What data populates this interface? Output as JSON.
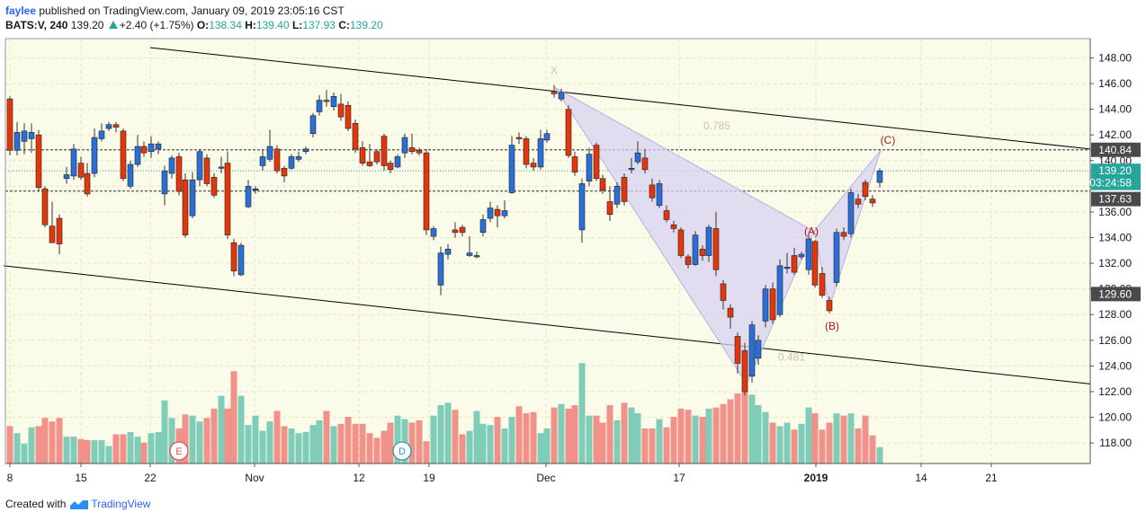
{
  "header": {
    "author": "faylee",
    "published_text": "published on TradingView.com, January 09, 2019 23:05:16 CST",
    "symbol": "BATS:V, 240",
    "last": "139.20",
    "change": "+2.40 (+1.75%)",
    "o_label": "O:",
    "o_val": "138.34",
    "h_label": "H:",
    "h_val": "139.40",
    "l_label": "L:",
    "l_val": "137.93",
    "c_label": "C:",
    "c_val": "139.20"
  },
  "footer": {
    "created_with": "Created with",
    "brand": "TradingView"
  },
  "colors": {
    "bg": "#fbfbe9",
    "up": "#2a6fd8",
    "down": "#e3360c",
    "vol_up": "#7fcdb9",
    "vol_down": "#f0928a",
    "pattern": "#d8d2f0",
    "grid": "#e9e6c0"
  },
  "chart_data": {
    "type": "candlestick",
    "x_tick_labels": [
      "8",
      "15",
      "22",
      "Nov",
      "12",
      "19",
      "Dec",
      "17",
      "2019",
      "14",
      "21"
    ],
    "y_ticks": [
      118,
      120,
      122,
      124,
      126,
      128,
      130,
      132,
      134,
      136,
      138,
      140,
      142,
      144,
      146,
      148
    ],
    "ylim": [
      116.4,
      149.5
    ],
    "price_labels": [
      {
        "value": 140.84,
        "text": "140.84",
        "style": "dark"
      },
      {
        "value": 139.2,
        "text": "139.20",
        "style": "teal"
      },
      {
        "value": 137.63,
        "text": "03:24:58",
        "style": "teal"
      },
      {
        "value": 137.63,
        "text": "137.63",
        "style": "dark"
      },
      {
        "value": 129.6,
        "text": "129.60",
        "style": "dark"
      }
    ],
    "hlines": [
      140.84,
      137.63
    ],
    "channel": [
      [
        [
          4,
          131.8
        ],
        [
          1212,
          122.6
        ]
      ],
      [
        [
          167,
          148.8
        ],
        [
          1212,
          140.9
        ]
      ]
    ],
    "pattern_points": [
      [
        617,
        145.7
      ],
      [
        830,
        122.6
      ],
      [
        905,
        134.5
      ],
      [
        922,
        128.6
      ],
      [
        979,
        140.8
      ]
    ],
    "annotations": [
      {
        "text": "X",
        "price": 147.0,
        "x": 616,
        "color": "#c7c3b8"
      },
      {
        "text": "0.785",
        "price": 142.7,
        "x": 797,
        "color": "#c7c3b8"
      },
      {
        "text": "0.481",
        "price": 124.7,
        "x": 880,
        "color": "#c7c3b8"
      },
      {
        "text": "(A)",
        "price": 134.5,
        "x": 902,
        "color": "#b01818"
      },
      {
        "text": "(B)",
        "price": 127.1,
        "x": 925,
        "color": "#b01818"
      },
      {
        "text": "(C)",
        "price": 141.6,
        "x": 987,
        "color": "#b01818"
      }
    ],
    "events": [
      {
        "label": "E",
        "color": "#e05050"
      },
      {
        "label": "D",
        "color": "#2a9ab0"
      }
    ],
    "candles": [
      [
        11,
        144.8,
        140.8,
        145.0,
        140.4
      ],
      [
        19,
        140.8,
        142.2,
        143.0,
        140.4
      ],
      [
        27,
        141.5,
        142.3,
        142.9,
        140.5
      ],
      [
        35,
        141.7,
        142.2,
        142.9,
        140.6
      ],
      [
        43,
        142.0,
        137.9,
        142.4,
        137.6
      ],
      [
        50,
        137.8,
        135.0,
        138.0,
        134.8
      ],
      [
        58,
        134.9,
        133.6,
        136.8,
        133.6
      ],
      [
        66,
        135.5,
        133.5,
        135.8,
        132.7
      ],
      [
        74,
        138.6,
        138.9,
        139.5,
        138.2
      ],
      [
        82,
        138.8,
        140.9,
        141.3,
        138.5
      ],
      [
        90,
        139.8,
        138.7,
        140.3,
        138.5
      ],
      [
        97,
        139.0,
        137.4,
        139.8,
        137.2
      ],
      [
        105,
        139.0,
        141.8,
        142.5,
        138.7
      ],
      [
        113,
        141.7,
        142.3,
        142.9,
        141.5
      ],
      [
        121,
        142.5,
        142.8,
        143.0,
        142.3
      ],
      [
        129,
        142.8,
        142.6,
        143.0,
        142.2
      ],
      [
        137,
        142.3,
        138.6,
        142.5,
        138.4
      ],
      [
        145,
        138.0,
        139.7,
        140.0,
        137.8
      ],
      [
        153,
        139.7,
        141.1,
        142.0,
        139.5
      ],
      [
        160,
        141.1,
        140.6,
        141.5,
        140.3
      ],
      [
        168,
        140.7,
        141.3,
        141.9,
        140.2
      ],
      [
        176,
        140.9,
        141.3,
        141.5,
        140.5
      ],
      [
        183,
        137.4,
        139.2,
        139.6,
        136.5
      ],
      [
        191,
        139.0,
        140.2,
        140.4,
        138.6
      ],
      [
        199,
        140.3,
        137.6,
        140.6,
        137.3
      ],
      [
        206,
        138.5,
        134.2,
        139.0,
        134.0
      ],
      [
        214,
        135.7,
        138.5,
        139.1,
        135.5
      ],
      [
        222,
        138.5,
        140.7,
        140.9,
        138.0
      ],
      [
        230,
        140.2,
        138.2,
        140.5,
        138.0
      ],
      [
        238,
        138.7,
        137.3,
        139.0,
        137.1
      ],
      [
        246,
        139.5,
        139.5,
        140.3,
        139.0
      ],
      [
        253,
        139.8,
        134.2,
        140.7,
        133.9
      ],
      [
        260,
        133.6,
        131.4,
        133.9,
        131.0
      ],
      [
        268,
        131.1,
        133.4,
        133.6,
        131.0
      ],
      [
        276,
        136.4,
        138.0,
        138.5,
        136.3
      ],
      [
        284,
        137.7,
        137.8,
        138.0,
        137.4
      ],
      [
        292,
        139.6,
        140.3,
        140.8,
        139.2
      ],
      [
        300,
        140.1,
        141.1,
        142.4,
        139.9
      ],
      [
        308,
        140.9,
        139.2,
        141.2,
        139.0
      ],
      [
        316,
        139.4,
        138.8,
        139.6,
        138.3
      ],
      [
        324,
        139.4,
        140.3,
        140.5,
        139.3
      ],
      [
        332,
        140.1,
        140.3,
        140.7,
        139.9
      ],
      [
        340,
        140.7,
        140.9,
        141.1,
        140.5
      ],
      [
        348,
        142.1,
        143.5,
        143.7,
        141.8
      ],
      [
        355,
        143.8,
        144.7,
        145.1,
        143.5
      ],
      [
        363,
        144.7,
        144.6,
        145.5,
        144.2
      ],
      [
        371,
        144.2,
        145.0,
        145.3,
        143.9
      ],
      [
        379,
        144.4,
        143.4,
        145.2,
        143.1
      ],
      [
        387,
        144.3,
        142.5,
        144.6,
        142.3
      ],
      [
        395,
        142.9,
        140.9,
        143.2,
        140.6
      ],
      [
        403,
        141.0,
        139.8,
        141.5,
        139.6
      ],
      [
        411,
        139.9,
        139.6,
        141.3,
        139.5
      ],
      [
        419,
        140.7,
        139.9,
        140.9,
        139.7
      ],
      [
        427,
        141.9,
        139.6,
        142.1,
        139.2
      ],
      [
        434,
        139.8,
        139.3,
        140.0,
        139.0
      ],
      [
        442,
        139.5,
        140.3,
        140.5,
        139.4
      ],
      [
        450,
        140.6,
        141.8,
        142.1,
        140.2
      ],
      [
        458,
        141.0,
        140.7,
        142.1,
        140.5
      ],
      [
        466,
        140.8,
        140.6,
        141.0,
        140.4
      ],
      [
        474,
        140.6,
        134.6,
        140.9,
        134.2
      ],
      [
        482,
        134.1,
        134.7,
        134.9,
        133.8
      ],
      [
        490,
        130.3,
        132.8,
        133.3,
        129.5
      ],
      [
        498,
        132.7,
        133.1,
        133.5,
        132.3
      ],
      [
        506,
        134.6,
        134.4,
        135.2,
        134.0
      ],
      [
        514,
        134.8,
        134.4,
        135.0,
        134.1
      ],
      [
        522,
        132.6,
        132.8,
        134.1,
        132.5
      ],
      [
        530,
        132.6,
        132.6,
        132.9,
        132.4
      ],
      [
        537,
        134.4,
        135.4,
        135.8,
        134.1
      ],
      [
        545,
        135.5,
        136.3,
        136.8,
        135.2
      ],
      [
        553,
        136.2,
        135.7,
        136.5,
        134.8
      ],
      [
        561,
        135.7,
        136.1,
        136.9,
        135.5
      ],
      [
        569,
        137.5,
        141.2,
        141.9,
        137.4
      ],
      [
        577,
        141.8,
        141.7,
        142.2,
        141.3
      ],
      [
        585,
        141.7,
        139.7,
        141.9,
        139.4
      ],
      [
        593,
        139.8,
        139.5,
        140.2,
        139.2
      ],
      [
        601,
        139.5,
        141.7,
        142.4,
        139.3
      ],
      [
        608,
        141.6,
        142.1,
        142.4,
        141.4
      ],
      [
        616,
        145.4,
        145.2,
        145.9,
        144.9
      ],
      [
        624,
        144.8,
        145.3,
        145.6,
        144.6
      ],
      [
        632,
        144.0,
        140.4,
        144.3,
        140.2
      ],
      [
        639,
        140.3,
        139.1,
        140.7,
        138.8
      ],
      [
        647,
        134.6,
        138.2,
        138.6,
        133.6
      ],
      [
        655,
        138.4,
        140.5,
        141.0,
        138.0
      ],
      [
        663,
        141.2,
        138.6,
        141.4,
        138.4
      ],
      [
        670,
        138.6,
        137.7,
        138.9,
        137.4
      ],
      [
        678,
        136.8,
        135.8,
        138.0,
        135.3
      ],
      [
        686,
        136.6,
        138.0,
        138.3,
        136.3
      ],
      [
        694,
        138.7,
        136.8,
        139.0,
        136.5
      ],
      [
        702,
        139.3,
        139.4,
        140.2,
        139.0
      ],
      [
        709,
        139.9,
        140.6,
        141.5,
        139.7
      ],
      [
        717,
        140.2,
        139.3,
        140.9,
        139.0
      ],
      [
        725,
        138.1,
        137.1,
        138.6,
        136.8
      ],
      [
        733,
        136.5,
        138.2,
        138.5,
        136.3
      ],
      [
        741,
        136.1,
        135.4,
        136.5,
        135.2
      ],
      [
        749,
        135.0,
        134.7,
        135.3,
        134.4
      ],
      [
        757,
        134.6,
        132.6,
        134.8,
        132.4
      ],
      [
        765,
        132.5,
        131.9,
        132.7,
        131.6
      ],
      [
        773,
        131.9,
        134.2,
        134.5,
        131.8
      ],
      [
        781,
        133.1,
        132.6,
        133.4,
        132.2
      ],
      [
        788,
        132.6,
        134.8,
        135.0,
        132.1
      ],
      [
        796,
        134.7,
        131.5,
        136.0,
        131.0
      ],
      [
        804,
        130.4,
        129.1,
        130.7,
        128.4
      ],
      [
        812,
        128.5,
        127.8,
        128.8,
        126.9
      ],
      [
        820,
        126.3,
        124.2,
        126.6,
        123.4
      ],
      [
        828,
        125.2,
        122.0,
        125.8,
        121.7
      ],
      [
        836,
        123.2,
        127.2,
        127.5,
        122.7
      ],
      [
        843,
        124.6,
        126.0,
        126.4,
        124.1
      ],
      [
        851,
        127.5,
        130.0,
        130.3,
        127.0
      ],
      [
        859,
        130.0,
        127.6,
        130.5,
        127.3
      ],
      [
        867,
        128.0,
        131.8,
        132.3,
        127.8
      ],
      [
        875,
        131.6,
        131.7,
        132.8,
        131.2
      ],
      [
        883,
        132.6,
        131.3,
        133.2,
        131.1
      ],
      [
        891,
        132.5,
        132.7,
        132.9,
        132.3
      ],
      [
        899,
        131.5,
        133.9,
        134.2,
        131.1
      ],
      [
        906,
        133.7,
        130.3,
        133.8,
        130.1
      ],
      [
        914,
        131.2,
        129.5,
        131.7,
        129.3
      ],
      [
        922,
        129.1,
        128.3,
        129.4,
        128.1
      ],
      [
        930,
        130.5,
        134.4,
        134.7,
        130.2
      ],
      [
        938,
        134.4,
        134.1,
        134.8,
        133.8
      ],
      [
        946,
        134.3,
        137.5,
        137.8,
        134.0
      ],
      [
        954,
        137.0,
        136.6,
        137.4,
        136.3
      ],
      [
        962,
        138.3,
        137.2,
        138.5,
        136.9
      ],
      [
        970,
        137.0,
        136.7,
        137.3,
        136.4
      ],
      [
        978,
        138.3,
        139.2,
        139.4,
        137.9
      ]
    ],
    "volumes": [
      [
        11,
        0.32
      ],
      [
        19,
        0.26
      ],
      [
        27,
        0.17
      ],
      [
        35,
        0.31
      ],
      [
        43,
        0.32
      ],
      [
        50,
        0.39
      ],
      [
        58,
        0.36
      ],
      [
        66,
        0.39
      ],
      [
        74,
        0.23
      ],
      [
        82,
        0.23
      ],
      [
        90,
        0.21
      ],
      [
        97,
        0.2
      ],
      [
        105,
        0.2
      ],
      [
        113,
        0.2
      ],
      [
        121,
        0.15
      ],
      [
        129,
        0.25
      ],
      [
        137,
        0.25
      ],
      [
        145,
        0.27
      ],
      [
        153,
        0.23
      ],
      [
        160,
        0.18
      ],
      [
        168,
        0.26
      ],
      [
        176,
        0.27
      ],
      [
        183,
        0.54
      ],
      [
        191,
        0.39
      ],
      [
        199,
        0.3
      ],
      [
        206,
        0.42
      ],
      [
        214,
        0.41
      ],
      [
        222,
        0.36
      ],
      [
        230,
        0.39
      ],
      [
        238,
        0.47
      ],
      [
        246,
        0.58
      ],
      [
        253,
        0.47
      ],
      [
        260,
        0.79
      ],
      [
        268,
        0.58
      ],
      [
        276,
        0.33
      ],
      [
        284,
        0.41
      ],
      [
        292,
        0.28
      ],
      [
        300,
        0.36
      ],
      [
        308,
        0.45
      ],
      [
        316,
        0.32
      ],
      [
        324,
        0.3
      ],
      [
        332,
        0.26
      ],
      [
        340,
        0.27
      ],
      [
        348,
        0.33
      ],
      [
        355,
        0.37
      ],
      [
        363,
        0.45
      ],
      [
        371,
        0.32
      ],
      [
        379,
        0.34
      ],
      [
        387,
        0.4
      ],
      [
        395,
        0.34
      ],
      [
        403,
        0.34
      ],
      [
        411,
        0.26
      ],
      [
        419,
        0.22
      ],
      [
        427,
        0.28
      ],
      [
        434,
        0.35
      ],
      [
        442,
        0.41
      ],
      [
        450,
        0.38
      ],
      [
        458,
        0.35
      ],
      [
        466,
        0.37
      ],
      [
        474,
        0.19
      ],
      [
        482,
        0.41
      ],
      [
        490,
        0.5
      ],
      [
        498,
        0.52
      ],
      [
        506,
        0.46
      ],
      [
        514,
        0.25
      ],
      [
        522,
        0.28
      ],
      [
        530,
        0.45
      ],
      [
        537,
        0.34
      ],
      [
        545,
        0.33
      ],
      [
        553,
        0.4
      ],
      [
        561,
        0.3
      ],
      [
        569,
        0.4
      ],
      [
        577,
        0.49
      ],
      [
        585,
        0.43
      ],
      [
        593,
        0.44
      ],
      [
        601,
        0.26
      ],
      [
        608,
        0.3
      ],
      [
        616,
        0.48
      ],
      [
        624,
        0.51
      ],
      [
        632,
        0.47
      ],
      [
        639,
        0.5
      ],
      [
        647,
        0.86
      ],
      [
        655,
        0.41
      ],
      [
        663,
        0.41
      ],
      [
        670,
        0.35
      ],
      [
        678,
        0.5
      ],
      [
        686,
        0.37
      ],
      [
        694,
        0.52
      ],
      [
        702,
        0.48
      ],
      [
        709,
        0.43
      ],
      [
        717,
        0.3
      ],
      [
        725,
        0.3
      ],
      [
        733,
        0.38
      ],
      [
        741,
        0.31
      ],
      [
        749,
        0.4
      ],
      [
        757,
        0.47
      ],
      [
        765,
        0.46
      ],
      [
        773,
        0.41
      ],
      [
        781,
        0.4
      ],
      [
        788,
        0.47
      ],
      [
        796,
        0.48
      ],
      [
        804,
        0.51
      ],
      [
        812,
        0.55
      ],
      [
        820,
        0.6
      ],
      [
        828,
        0.66
      ],
      [
        836,
        0.59
      ],
      [
        843,
        0.5
      ],
      [
        851,
        0.44
      ],
      [
        859,
        0.35
      ],
      [
        867,
        0.32
      ],
      [
        875,
        0.35
      ],
      [
        883,
        0.29
      ],
      [
        891,
        0.34
      ],
      [
        899,
        0.48
      ],
      [
        906,
        0.43
      ],
      [
        914,
        0.29
      ],
      [
        922,
        0.35
      ],
      [
        930,
        0.43
      ],
      [
        938,
        0.41
      ],
      [
        946,
        0.43
      ],
      [
        954,
        0.3
      ],
      [
        962,
        0.41
      ],
      [
        970,
        0.24
      ],
      [
        978,
        0.14
      ]
    ]
  }
}
